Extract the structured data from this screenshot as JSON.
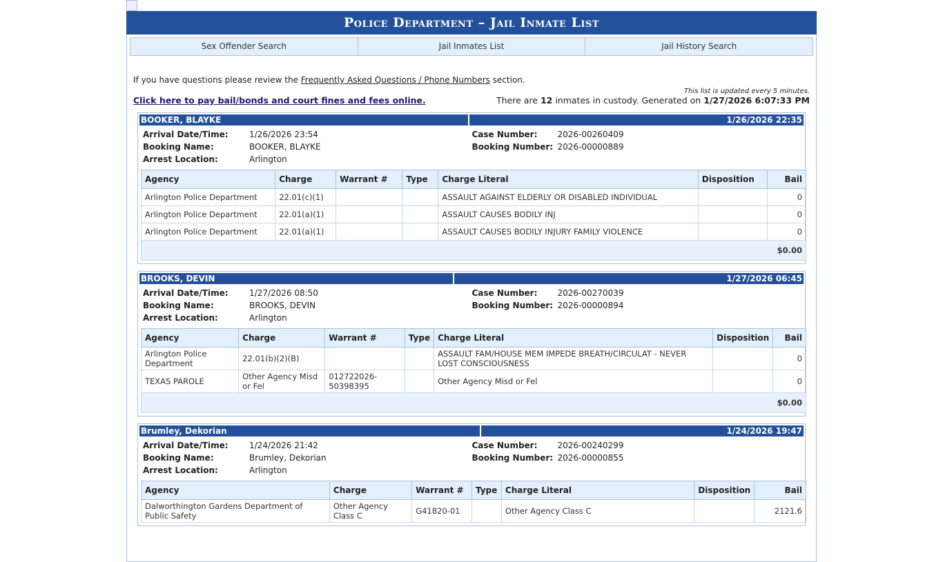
{
  "header": {
    "title": "Police Department – Jail Inmate List"
  },
  "nav": [
    {
      "label": "Sex Offender Search"
    },
    {
      "label": "Jail Inmates List"
    },
    {
      "label": "Jail History Search"
    }
  ],
  "intro": {
    "prefix": "If you have questions please review the ",
    "link": "Frequently Asked Questions / Phone Numbers",
    "suffix": " section."
  },
  "pay_link": "Click here to pay bail/bonds and court fines and fees online.",
  "update_note": "This list is updated every 5 minutes.",
  "summary": {
    "pre": "There are ",
    "count": "12",
    "mid": " inmates in custody. Generated on ",
    "generated": "1/27/2026 6:07:33 PM"
  },
  "labels": {
    "arrival": "Arrival Date/Time:",
    "booking_name": "Booking Name:",
    "arrest_location": "Arrest Location:",
    "case_number": "Case Number:",
    "booking_number": "Booking Number:"
  },
  "columns": [
    "Agency",
    "Charge",
    "Warrant #",
    "Type",
    "Charge Literal",
    "Disposition",
    "Bail"
  ],
  "inmates": [
    {
      "name": "BOOKER, BLAYKE",
      "date": "1/26/2026  22:35",
      "arrival": "1/26/2026 23:54",
      "booking_name": "BOOKER, BLAYKE",
      "arrest_location": "Arlington",
      "case_number": "2026-00260409",
      "booking_number": "2026-00000889",
      "total": "$0.00",
      "charges": [
        [
          "Arlington Police Department",
          "22.01(c)(1)",
          "",
          "",
          "ASSAULT AGAINST ELDERLY OR DISABLED INDIVIDUAL",
          "",
          "0"
        ],
        [
          "Arlington Police Department",
          "22.01(a)(1)",
          "",
          "",
          "ASSAULT CAUSES BODILY INJ",
          "",
          "0"
        ],
        [
          "Arlington Police Department",
          "22.01(a)(1)",
          "",
          "",
          "ASSAULT CAUSES BODILY INJURY FAMILY VIOLENCE",
          "",
          "0"
        ]
      ]
    },
    {
      "name": "BROOKS, DEVIN",
      "date": "1/27/2026  06:45",
      "arrival": "1/27/2026 08:50",
      "booking_name": "BROOKS, DEVIN",
      "arrest_location": "Arlington",
      "case_number": "2026-00270039",
      "booking_number": "2026-00000894",
      "total": "$0.00",
      "charges": [
        [
          "Arlington Police Department",
          "22.01(b)(2)(B)",
          "",
          "",
          "ASSAULT FAM/HOUSE MEM IMPEDE BREATH/CIRCULAT - NEVER LOST CONSCIOUSNESS",
          "",
          "0"
        ],
        [
          "TEXAS PAROLE",
          "Other Agency Misd or Fel",
          "012722026-50398395",
          "",
          "Other Agency Misd or Fel",
          "",
          "0"
        ]
      ]
    },
    {
      "name": "Brumley, Dekorian",
      "date": "1/24/2026  19:47",
      "arrival": "1/24/2026 21:42",
      "booking_name": "Brumley, Dekorian",
      "arrest_location": "Arlington",
      "case_number": "2026-00240299",
      "booking_number": "2026-00000855",
      "total": "",
      "charges": [
        [
          "Dalworthington Gardens Department of Public Safety",
          "Other Agency Class C",
          "G41820-01",
          "",
          "Other Agency Class C",
          "",
          "2121.6"
        ]
      ]
    }
  ]
}
